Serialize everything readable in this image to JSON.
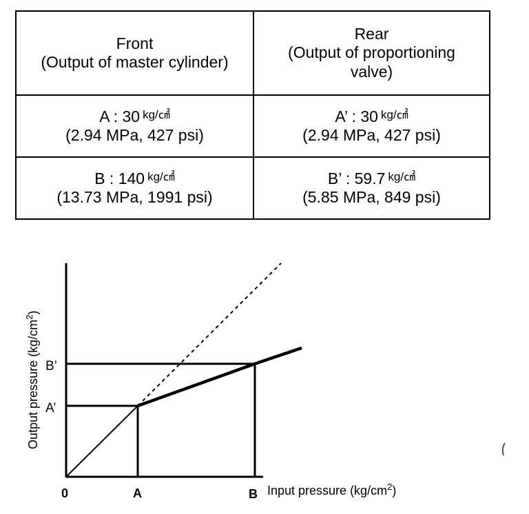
{
  "table": {
    "headers": [
      {
        "title": "Front",
        "subtitle": "(Output of master cylinder)"
      },
      {
        "title": "Rear",
        "subtitle_line1": "(Output of proportioning",
        "subtitle_line2": "valve)"
      }
    ],
    "rows": [
      {
        "front": {
          "label": "A :  30",
          "unit": "kg/㎠",
          "detail": "(2.94 MPa, 427 psi)"
        },
        "rear": {
          "label": "A’ :  30",
          "unit": "kg/㎠",
          "detail": "(2.94 MPa, 427 psi)"
        }
      },
      {
        "front": {
          "label": "B : 140",
          "unit": "kg/㎠",
          "detail": "(13.73 MPa, 1991 psi)"
        },
        "rear": {
          "label": "B’ : 59.7",
          "unit": "kg/㎠",
          "detail": "(5.85 MPa, 849 psi)"
        }
      }
    ]
  },
  "graph": {
    "origin_label": "0",
    "x_label_a": "A",
    "x_label_b": "B",
    "x_axis_title": "Input pressure (kg/cm",
    "x_axis_sup": "2",
    "x_axis_close": ")",
    "y_label_a": "A’",
    "y_label_b": "B’",
    "y_axis_title": "Output pressure (kg/cm",
    "y_axis_sup": "2",
    "y_axis_close": ")"
  }
}
